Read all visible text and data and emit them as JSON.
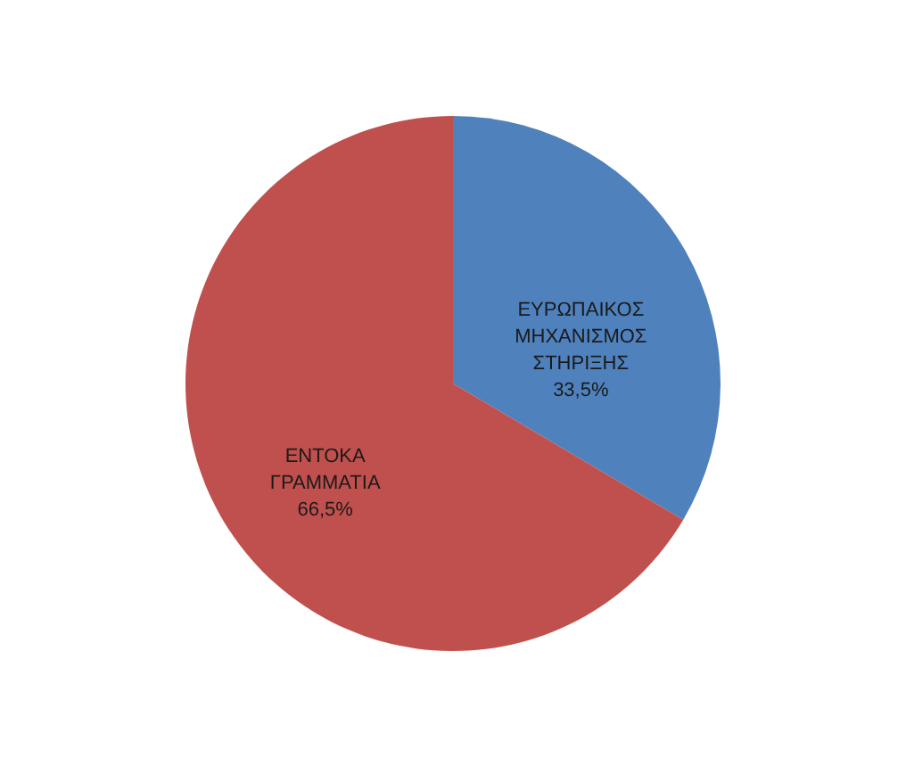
{
  "chart_data": {
    "type": "pie",
    "categories": [
      "ΕΥΡΩΠΑΙΚΟΣ ΜΗΧΑΝΙΣΜΟΣ ΣΤΗΡΙΞΗΣ",
      "ΕΝΤΟΚΑ ΓΡΑΜΜΑΤΙΑ"
    ],
    "values": [
      33.5,
      66.5
    ],
    "colors": [
      "#4f81bd",
      "#c0504d"
    ],
    "value_labels": [
      "33,5%",
      "66,5%"
    ],
    "legend": false
  }
}
